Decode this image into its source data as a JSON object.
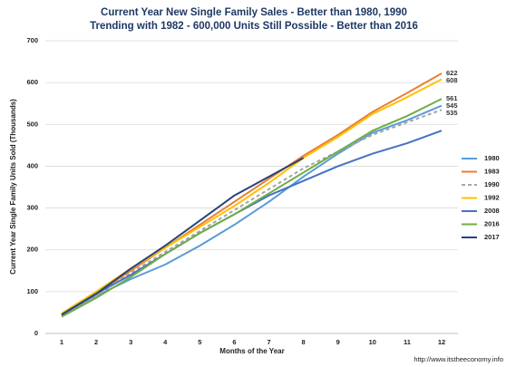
{
  "chart_data": {
    "type": "line",
    "title": [
      "Current Year New Single Family Sales - Better than 1980, 1990",
      "Trending with 1982 - 600,000 Units Still Possible - Better than 2016"
    ],
    "x_label": "Months of the Year",
    "y_label": "Current Year Single Family Units Sold (Thousands)",
    "footer": "http://www.itstheeconomy.info",
    "categories": [
      "1",
      "2",
      "3",
      "4",
      "5",
      "6",
      "7",
      "8",
      "9",
      "10",
      "11",
      "12"
    ],
    "ylim": [
      0,
      700
    ],
    "yticks": [
      0,
      100,
      200,
      300,
      400,
      500,
      600,
      700
    ],
    "grid": true,
    "legend": "right",
    "series": [
      {
        "name": "1980",
        "color": "#5b9bd5",
        "values": [
          45,
          90,
          130,
          165,
          210,
          260,
          315,
          375,
          430,
          480,
          510,
          545
        ],
        "label_last": true
      },
      {
        "name": "1983",
        "color": "#ed7d31",
        "values": [
          45,
          95,
          150,
          205,
          260,
          315,
          370,
          425,
          475,
          530,
          575,
          622
        ],
        "label_last": true
      },
      {
        "name": "1990",
        "color": "#a5a5a5",
        "dashed": true,
        "values": [
          42,
          90,
          145,
          195,
          245,
          295,
          345,
          395,
          435,
          475,
          505,
          535
        ],
        "label_last": true
      },
      {
        "name": "1992",
        "color": "#ffc000",
        "values": [
          48,
          100,
          155,
          205,
          255,
          305,
          360,
          420,
          470,
          525,
          565,
          608
        ],
        "label_last": true
      },
      {
        "name": "2008",
        "color": "#4472c4",
        "values": [
          45,
          95,
          140,
          190,
          240,
          285,
          330,
          365,
          400,
          430,
          455,
          485
        ]
      },
      {
        "name": "2016",
        "color": "#70ad47",
        "values": [
          40,
          85,
          135,
          190,
          240,
          285,
          335,
          385,
          435,
          485,
          520,
          561
        ],
        "label_last": true
      },
      {
        "name": "2017",
        "color": "#264478",
        "values": [
          45,
          95,
          155,
          210,
          270,
          330,
          375,
          420,
          null,
          null,
          null,
          null
        ]
      }
    ]
  }
}
